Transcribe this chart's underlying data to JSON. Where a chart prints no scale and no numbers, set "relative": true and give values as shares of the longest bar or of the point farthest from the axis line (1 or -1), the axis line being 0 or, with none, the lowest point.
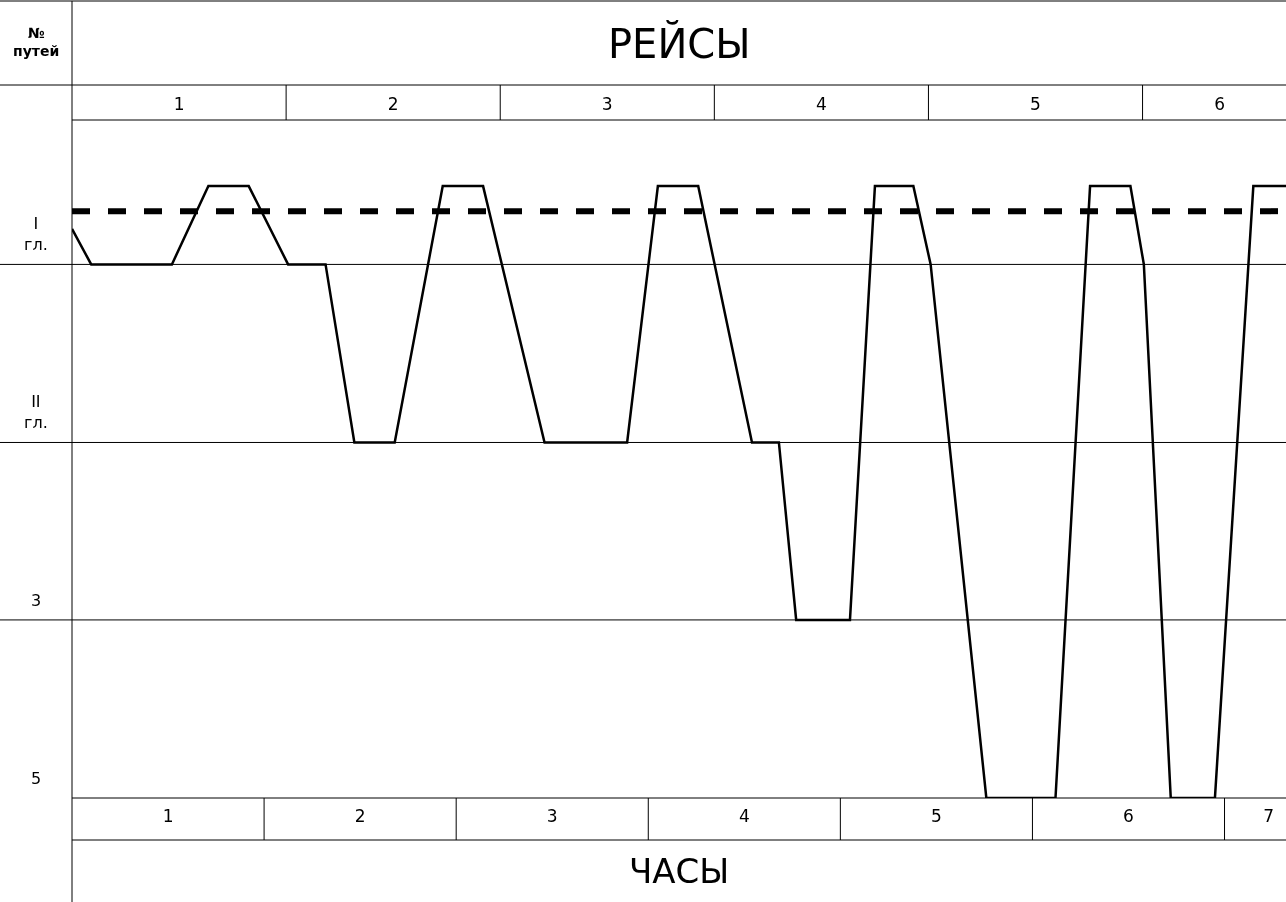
{
  "chart_data": {
    "type": "line",
    "xlabel": "ЧАСЫ",
    "ylabel": "№ путей",
    "x2label": "РЕЙСЫ",
    "relative": true,
    "series": [
      {
        "color": "#000000",
        "line_style": "solid",
        "x": [
          0.5,
          0.6,
          1.02,
          1.21,
          1.42,
          1.625,
          1.82,
          1.97,
          2.18,
          2.43,
          2.64,
          2.96,
          3.39,
          3.55,
          3.76,
          4.04,
          4.18,
          4.27,
          4.55,
          4.68,
          4.88,
          4.97,
          5.26,
          5.62,
          5.8,
          6.01,
          6.08,
          6.22,
          6.45,
          6.65,
          6.82
        ],
        "values": [
          0.93,
          0.872,
          0.872,
          1,
          1,
          0.872,
          0.872,
          0.581,
          0.581,
          1,
          1,
          0.581,
          0.581,
          1,
          1,
          0.581,
          0.581,
          0.291,
          0.291,
          1,
          1,
          0.872,
          0,
          0,
          1,
          1,
          0.872,
          0,
          0,
          1,
          1
        ]
      },
      {
        "color": "#000000",
        "line_style": "dashed",
        "x": [
          0.5,
          6.82
        ],
        "values": [
          0.959,
          0.959
        ]
      }
    ],
    "xlim": [
      0.5,
      6.82
    ],
    "xticks": [
      1,
      2,
      3,
      4,
      5,
      6,
      {
        "value": 6.73,
        "label": "7"
      }
    ],
    "x2lim": [
      0.5,
      6.17
    ],
    "x2ticks": [
      1,
      2,
      3,
      4,
      5,
      {
        "value": 5.86,
        "label": "6"
      }
    ],
    "ref_lines": [
      {
        "axis": "y",
        "value": 0.291
      },
      {
        "axis": "y",
        "value": 0.581
      },
      {
        "axis": "y",
        "value": 0.872
      }
    ],
    "annotations": [
      "I гл.",
      "II гл.",
      "3",
      "5"
    ],
    "grid": false
  }
}
